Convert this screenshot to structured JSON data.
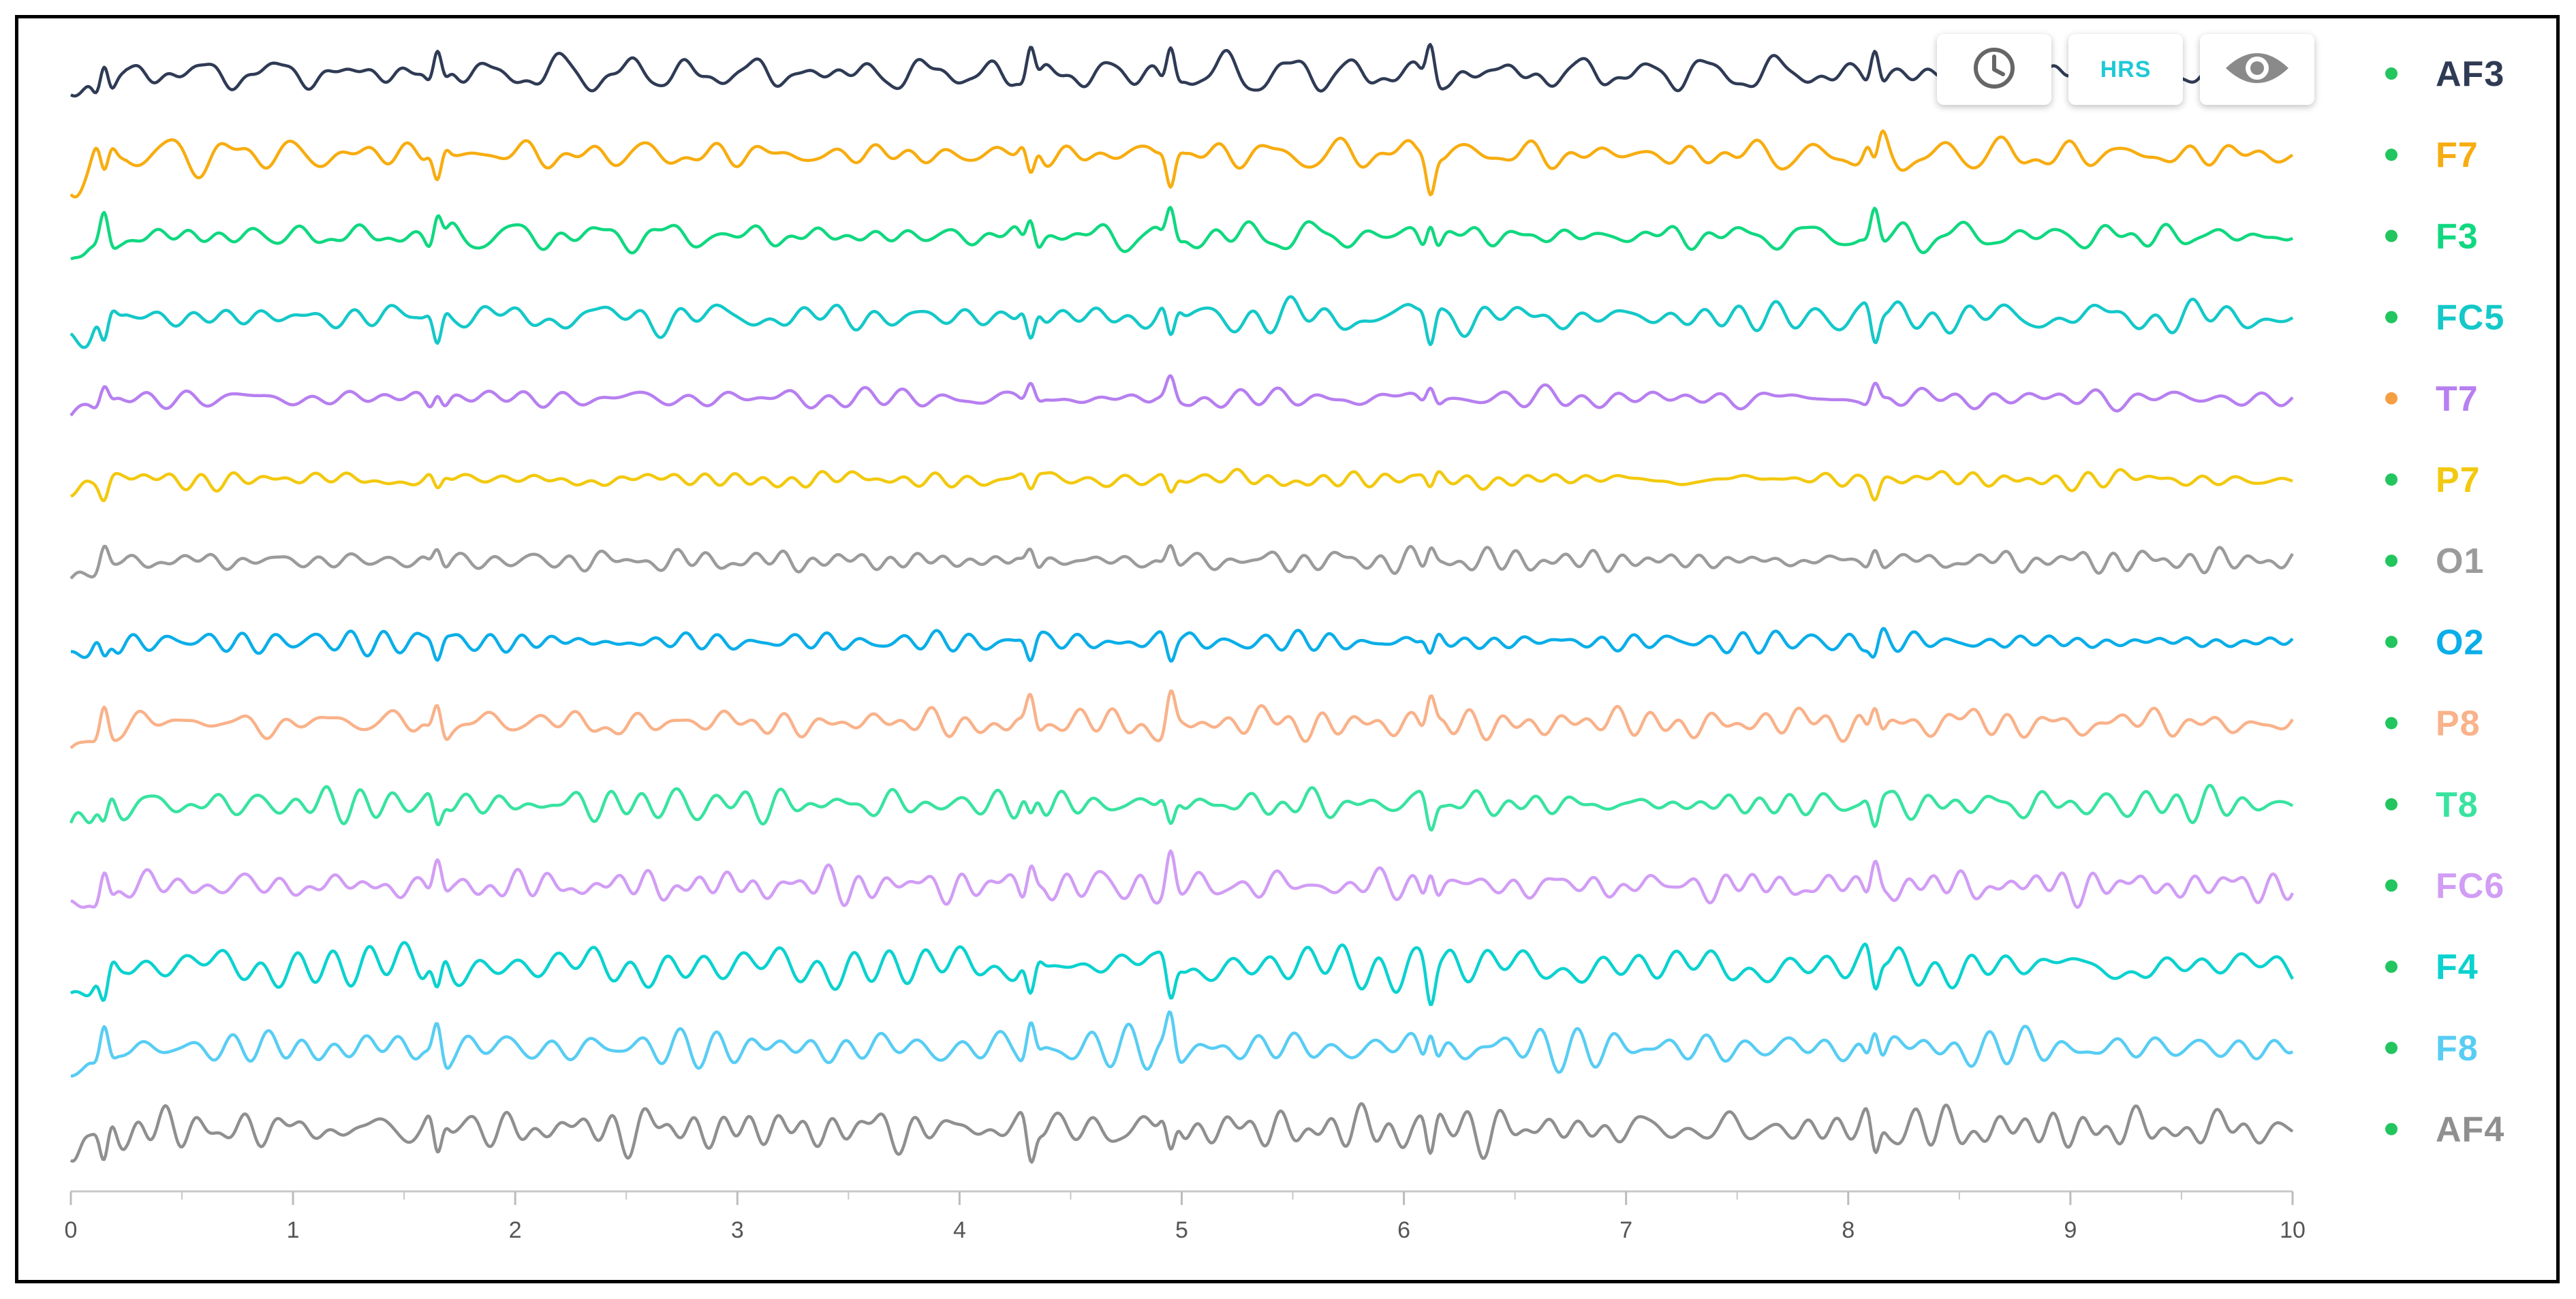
{
  "toolbar": {
    "clock_icon": "clock-icon",
    "hrs_label": "HRS",
    "eye_icon": "eye-icon",
    "hrs_color": "#1fc9d6"
  },
  "chart_data": {
    "type": "line",
    "title": "",
    "xlabel": "",
    "ylabel": "",
    "xlim": [
      0,
      10
    ],
    "x_ticks": [
      "0",
      "1",
      "2",
      "3",
      "4",
      "5",
      "6",
      "7",
      "8",
      "9",
      "10"
    ],
    "grid": false,
    "legend": "right",
    "series": [
      {
        "name": "AF3",
        "color": "#2f3b55",
        "status_color": "#22c55e",
        "amplitude": 1.0
      },
      {
        "name": "F7",
        "color": "#f7ad10",
        "status_color": "#22c55e",
        "amplitude": 0.9
      },
      {
        "name": "F3",
        "color": "#10d880",
        "status_color": "#22c55e",
        "amplitude": 0.9
      },
      {
        "name": "FC5",
        "color": "#14c8c8",
        "status_color": "#22c55e",
        "amplitude": 0.9
      },
      {
        "name": "T7",
        "color": "#b77ff0",
        "status_color": "#f59e42",
        "amplitude": 0.55
      },
      {
        "name": "P7",
        "color": "#f2c90f",
        "status_color": "#22c55e",
        "amplitude": 0.45
      },
      {
        "name": "O1",
        "color": "#9b9b9b",
        "status_color": "#22c55e",
        "amplitude": 0.55
      },
      {
        "name": "O2",
        "color": "#0aaee8",
        "status_color": "#22c55e",
        "amplitude": 0.6
      },
      {
        "name": "P8",
        "color": "#f9b28a",
        "status_color": "#22c55e",
        "amplitude": 0.9
      },
      {
        "name": "T8",
        "color": "#38e3a0",
        "status_color": "#22c55e",
        "amplitude": 0.8
      },
      {
        "name": "FC6",
        "color": "#d19df5",
        "status_color": "#22c55e",
        "amplitude": 0.95
      },
      {
        "name": "F4",
        "color": "#0ad2cf",
        "status_color": "#22c55e",
        "amplitude": 1.0
      },
      {
        "name": "F8",
        "color": "#58cdf3",
        "status_color": "#22c55e",
        "amplitude": 1.0
      },
      {
        "name": "AF4",
        "color": "#8f8f8f",
        "status_color": "#22c55e",
        "amplitude": 1.05
      }
    ]
  }
}
